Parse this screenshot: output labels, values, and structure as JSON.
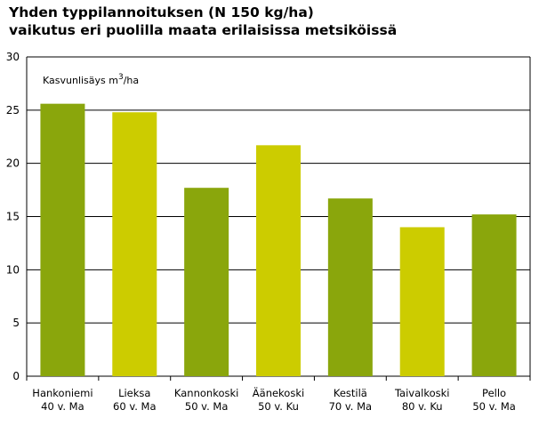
{
  "title_line1": "Yhden typpilannoituksen (N 150 kg/ha)",
  "title_line2": "vaikutus eri puolilla maata erilaisissa metsiköissä",
  "colors": {
    "dark_green": "#8aa60c",
    "yellow_green": "#cccc00",
    "grid": "#000000"
  },
  "chart_data": {
    "type": "bar",
    "title": "Yhden typpilannoituksen (N 150 kg/ha) vaikutus eri puolilla maata erilaisissa metsiköissä",
    "ylabel": "Kasvunlisäys m3/ha",
    "ylabel_main": "Kasvunlisäys m",
    "ylabel_sup": "3",
    "ylabel_tail": "/ha",
    "xlabel": "",
    "ylim": [
      0,
      30
    ],
    "yticks": [
      0,
      5,
      10,
      15,
      20,
      25,
      30
    ],
    "grid": true,
    "categories": [
      "Hankoniemi",
      "Lieksa",
      "Kannonkoski",
      "Äänekoski",
      "Kestilä",
      "Taivalkoski",
      "Pello"
    ],
    "subtitles": [
      "40 v. Ma",
      "60 v. Ma",
      "50 v. Ma",
      "50 v. Ku",
      "70 v. Ma",
      "80 v. Ku",
      "50 v. Ma"
    ],
    "values": [
      25.6,
      24.8,
      17.7,
      21.7,
      16.7,
      14.0,
      15.2
    ],
    "bar_colors": [
      "#8aa60c",
      "#cccc00",
      "#8aa60c",
      "#cccc00",
      "#8aa60c",
      "#cccc00",
      "#8aa60c"
    ]
  }
}
